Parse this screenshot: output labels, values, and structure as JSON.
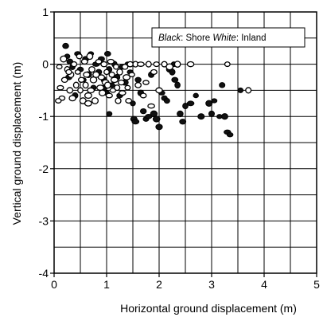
{
  "chart_data": {
    "type": "scatter",
    "title": "",
    "xlabel": "Horizontal ground displacement (m)",
    "ylabel": "Vertical ground displacement (m)",
    "xlim": [
      0,
      5
    ],
    "ylim": [
      -4,
      1
    ],
    "xticks": [
      "0",
      "1",
      "2",
      "3",
      "4",
      "5"
    ],
    "yticks": [
      "-4",
      "-3",
      "-2",
      "-1",
      "0",
      "1"
    ],
    "grid": true,
    "legend": {
      "placement": "top-right",
      "entries": [
        {
          "key": "Black",
          "label": "Shore",
          "color": "#000000"
        },
        {
          "key": "White",
          "label": "Inland",
          "color": "#ffffff"
        }
      ]
    },
    "series": [
      {
        "name": "Shore",
        "marker_fill": "#111111",
        "points": [
          [
            0.22,
            0.35
          ],
          [
            0.25,
            0.15
          ],
          [
            0.3,
            0.05
          ],
          [
            0.35,
            -0.05
          ],
          [
            0.28,
            -0.25
          ],
          [
            0.4,
            -0.6
          ],
          [
            0.45,
            0.2
          ],
          [
            0.5,
            -0.1
          ],
          [
            0.55,
            -0.3
          ],
          [
            0.6,
            0.1
          ],
          [
            0.7,
            0.2
          ],
          [
            0.65,
            -0.2
          ],
          [
            0.75,
            -0.45
          ],
          [
            0.8,
            0.0
          ],
          [
            0.85,
            -0.15
          ],
          [
            0.9,
            0.1
          ],
          [
            0.95,
            -0.3
          ],
          [
            1.0,
            -0.55
          ],
          [
            1.02,
            0.2
          ],
          [
            1.05,
            -0.1
          ],
          [
            1.1,
            -0.4
          ],
          [
            1.15,
            0.0
          ],
          [
            1.2,
            -0.25
          ],
          [
            1.25,
            -0.6
          ],
          [
            1.3,
            -0.05
          ],
          [
            1.35,
            -0.35
          ],
          [
            1.4,
            0.0
          ],
          [
            1.45,
            -0.15
          ],
          [
            1.5,
            -0.75
          ],
          [
            1.52,
            -1.05
          ],
          [
            1.55,
            -1.1
          ],
          [
            1.6,
            -0.3
          ],
          [
            1.65,
            -0.55
          ],
          [
            1.7,
            -0.9
          ],
          [
            1.75,
            -1.05
          ],
          [
            1.8,
            -1.0
          ],
          [
            1.85,
            -0.2
          ],
          [
            1.9,
            -0.95
          ],
          [
            1.95,
            -1.05
          ],
          [
            2.0,
            -1.2
          ],
          [
            2.05,
            -0.55
          ],
          [
            2.1,
            -0.65
          ],
          [
            2.15,
            -0.7
          ],
          [
            2.2,
            -0.1
          ],
          [
            2.25,
            -0.15
          ],
          [
            2.28,
            0.0
          ],
          [
            2.3,
            -0.3
          ],
          [
            2.35,
            -0.4
          ],
          [
            2.4,
            -0.95
          ],
          [
            2.45,
            -1.1
          ],
          [
            2.5,
            -0.8
          ],
          [
            2.6,
            -0.75
          ],
          [
            2.7,
            -0.6
          ],
          [
            2.8,
            -1.0
          ],
          [
            2.95,
            -0.75
          ],
          [
            3.0,
            -0.95
          ],
          [
            3.05,
            -0.7
          ],
          [
            3.15,
            -1.0
          ],
          [
            3.25,
            -1.0
          ],
          [
            3.3,
            -1.3
          ],
          [
            3.35,
            -1.35
          ],
          [
            3.2,
            -0.4
          ],
          [
            3.55,
            -0.5
          ],
          [
            1.05,
            -0.95
          ],
          [
            0.95,
            -0.45
          ]
        ]
      },
      {
        "name": "Inland",
        "marker_fill": "#ffffff",
        "points": [
          [
            0.1,
            -0.05
          ],
          [
            0.12,
            -0.45
          ],
          [
            0.15,
            -0.65
          ],
          [
            0.2,
            -0.3
          ],
          [
            0.25,
            -0.1
          ],
          [
            0.3,
            -0.5
          ],
          [
            0.32,
            -0.2
          ],
          [
            0.35,
            -0.65
          ],
          [
            0.38,
            0.0
          ],
          [
            0.42,
            -0.4
          ],
          [
            0.45,
            -0.15
          ],
          [
            0.48,
            0.15
          ],
          [
            0.5,
            -0.5
          ],
          [
            0.52,
            -0.3
          ],
          [
            0.55,
            -0.7
          ],
          [
            0.58,
            0.05
          ],
          [
            0.6,
            -0.4
          ],
          [
            0.62,
            -0.2
          ],
          [
            0.65,
            -0.6
          ],
          [
            0.68,
            0.15
          ],
          [
            0.7,
            -0.5
          ],
          [
            0.72,
            -0.1
          ],
          [
            0.75,
            -0.3
          ],
          [
            0.78,
            -0.7
          ],
          [
            0.8,
            -0.2
          ],
          [
            0.85,
            0.05
          ],
          [
            0.88,
            -0.45
          ],
          [
            0.9,
            -0.25
          ],
          [
            0.92,
            -0.55
          ],
          [
            0.95,
            0.0
          ],
          [
            0.98,
            -0.35
          ],
          [
            1.0,
            -0.15
          ],
          [
            1.02,
            -0.4
          ],
          [
            1.05,
            -0.6
          ],
          [
            1.08,
            0.05
          ],
          [
            1.1,
            -0.2
          ],
          [
            1.12,
            -0.5
          ],
          [
            1.15,
            -0.3
          ],
          [
            1.18,
            -0.05
          ],
          [
            1.2,
            -0.45
          ],
          [
            1.22,
            -0.7
          ],
          [
            1.25,
            -0.15
          ],
          [
            1.28,
            -0.35
          ],
          [
            1.3,
            -0.55
          ],
          [
            1.35,
            -0.05
          ],
          [
            1.38,
            -0.25
          ],
          [
            1.4,
            -0.45
          ],
          [
            1.42,
            -0.7
          ],
          [
            1.45,
            0.0
          ],
          [
            1.48,
            -0.2
          ],
          [
            1.55,
            0.0
          ],
          [
            1.6,
            -0.4
          ],
          [
            1.65,
            0.0
          ],
          [
            1.7,
            -0.6
          ],
          [
            1.75,
            -0.35
          ],
          [
            1.8,
            0.0
          ],
          [
            1.85,
            -0.8
          ],
          [
            1.9,
            -0.15
          ],
          [
            1.95,
            0.0
          ],
          [
            2.0,
            -0.5
          ],
          [
            2.1,
            0.0
          ],
          [
            2.2,
            -0.05
          ],
          [
            2.35,
            0.0
          ],
          [
            2.6,
            0.0
          ],
          [
            3.3,
            0.0
          ],
          [
            3.7,
            -0.5
          ],
          [
            0.18,
            0.1
          ],
          [
            0.28,
            -0.15
          ],
          [
            0.08,
            -0.7
          ],
          [
            0.65,
            -0.75
          ]
        ]
      }
    ]
  }
}
